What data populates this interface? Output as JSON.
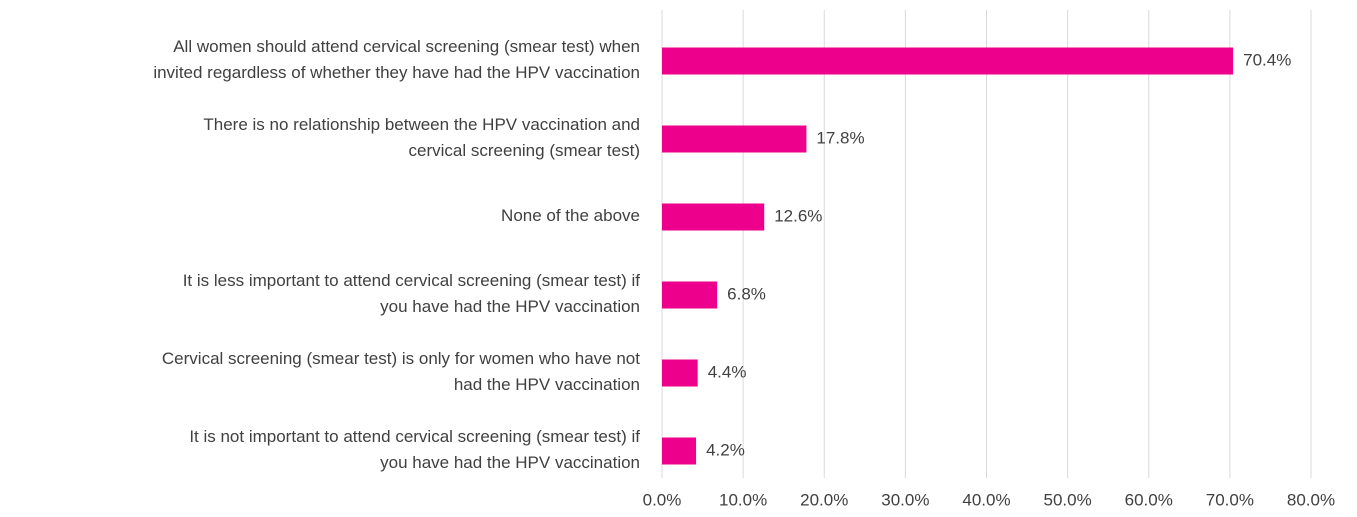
{
  "chart_data": {
    "type": "bar",
    "orientation": "horizontal",
    "categories": [
      "All women should attend cervical screening (smear test) when\ninvited regardless of whether they have had the HPV vaccination",
      "There is no relationship between the HPV vaccination and\ncervical screening (smear test)",
      "None of the above",
      "It is less important to attend cervical screening (smear test) if\nyou have had the HPV vaccination",
      "Cervical screening (smear test) is only for women who have not\nhad the HPV vaccination",
      "It is not important to attend cervical screening (smear test) if\nyou have had the HPV vaccination"
    ],
    "values": [
      70.4,
      17.8,
      12.6,
      6.8,
      4.4,
      4.2
    ],
    "value_labels": [
      "70.4%",
      "17.8%",
      "12.6%",
      "6.8%",
      "4.4%",
      "4.2%"
    ],
    "color": "#ec008c",
    "xlim": [
      0,
      80
    ],
    "xticks": [
      {
        "value": 0,
        "label": "0.0%"
      },
      {
        "value": 10,
        "label": "10.0%"
      },
      {
        "value": 20,
        "label": "20.0%"
      },
      {
        "value": 30,
        "label": "30.0%"
      },
      {
        "value": 40,
        "label": "40.0%"
      },
      {
        "value": 50,
        "label": "50.0%"
      },
      {
        "value": 60,
        "label": "60.0%"
      },
      {
        "value": 70,
        "label": "70.0%"
      },
      {
        "value": 80,
        "label": "80.0%"
      }
    ],
    "grid": true
  }
}
